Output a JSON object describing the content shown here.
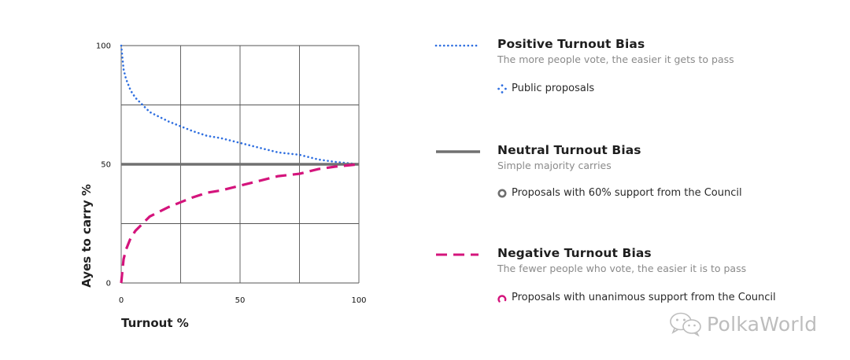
{
  "chart_data": {
    "type": "line",
    "xlabel": "Turnout %",
    "ylabel": "Ayes to carry %",
    "xlim": [
      0,
      100
    ],
    "ylim": [
      0,
      100
    ],
    "x_ticks": [
      0,
      50,
      100
    ],
    "y_ticks": [
      0,
      50,
      100
    ],
    "grid": true,
    "grid_step": 25,
    "legend_position": "right",
    "series": [
      {
        "name": "Positive Turnout Bias",
        "style": "dotted",
        "color": "#2f6fe0",
        "x": [
          0,
          1,
          2,
          4,
          6,
          9,
          12,
          16,
          20,
          25,
          30,
          36,
          42,
          50,
          58,
          66,
          75,
          83,
          90,
          95,
          100
        ],
        "y": [
          100,
          90,
          86,
          81,
          78,
          75,
          72,
          70,
          68,
          66,
          64,
          62,
          61,
          59,
          57,
          55,
          54,
          52,
          51,
          50.5,
          50
        ]
      },
      {
        "name": "Neutral Turnout Bias",
        "style": "solid",
        "color": "#707070",
        "x": [
          0,
          100
        ],
        "y": [
          50,
          50
        ]
      },
      {
        "name": "Negative Turnout Bias",
        "style": "dashed",
        "color": "#d4147c",
        "x": [
          0,
          1,
          2,
          4,
          6,
          9,
          12,
          16,
          20,
          25,
          30,
          36,
          42,
          50,
          58,
          66,
          75,
          83,
          90,
          95,
          100
        ],
        "y": [
          0,
          10,
          14,
          19,
          22,
          25,
          28,
          30,
          32,
          34,
          36,
          38,
          39,
          41,
          43,
          45,
          46,
          48,
          49,
          49.5,
          50
        ]
      }
    ]
  },
  "legend": [
    {
      "title": "Positive Turnout Bias",
      "description": "The more people vote, the easier it gets to pass",
      "example": "Public proposals",
      "marker": "dotted-diamond-icon"
    },
    {
      "title": "Neutral Turnout Bias",
      "description": "Simple majority carries",
      "example": "Proposals with 60% support from the Council",
      "marker": "ring-icon"
    },
    {
      "title": "Negative Turnout Bias",
      "description": "The fewer people who vote, the easier it is to pass",
      "example": "Proposals with unanimous support from the Council",
      "marker": "arc-icon"
    }
  ],
  "watermark": {
    "text": "PolkaWorld",
    "icon": "wechat-icon"
  }
}
